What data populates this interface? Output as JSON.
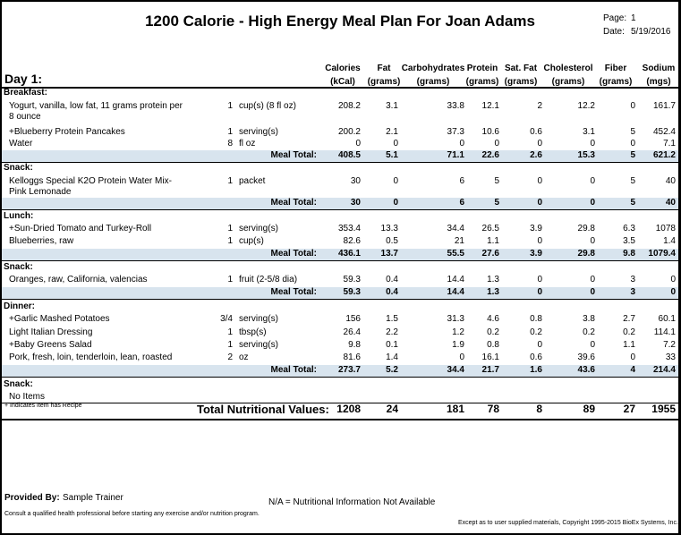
{
  "header": {
    "title": "1200 Calorie - High Energy Meal Plan For Joan Adams",
    "page_label": "Page:",
    "page_number": "1",
    "date_label": "Date:",
    "date": "5/19/2016",
    "day_label": "Day 1:"
  },
  "columns": [
    {
      "line1": "Calories",
      "line2": "(kCal)"
    },
    {
      "line1": "Fat",
      "line2": "(grams)"
    },
    {
      "line1": "Carbohydrates",
      "line2": "(grams)"
    },
    {
      "line1": "Protein",
      "line2": "(grams)"
    },
    {
      "line1": "Sat. Fat",
      "line2": "(grams)"
    },
    {
      "line1": "Cholesterol",
      "line2": "(grams)"
    },
    {
      "line1": "Fiber",
      "line2": "(grams)"
    },
    {
      "line1": "Sodium",
      "line2": "(mgs)"
    }
  ],
  "sections": [
    {
      "label": "Breakfast:",
      "items": [
        {
          "name": "Yogurt, vanilla, low fat, 11 grams protein per 8 ounce",
          "qty": "1",
          "unit": "cup(s) (8 fl oz)",
          "values": [
            "208.2",
            "3.1",
            "33.8",
            "12.1",
            "2",
            "12.2",
            "0",
            "161.7"
          ]
        },
        {
          "name": "+Blueberry Protein Pancakes",
          "qty": "1",
          "unit": "serving(s)",
          "values": [
            "200.2",
            "2.1",
            "37.3",
            "10.6",
            "0.6",
            "3.1",
            "5",
            "452.4"
          ]
        },
        {
          "name": "Water",
          "qty": "8",
          "unit": "fl oz",
          "values": [
            "0",
            "0",
            "0",
            "0",
            "0",
            "0",
            "0",
            "7.1"
          ]
        }
      ],
      "total_label": "Meal Total:",
      "totals": [
        "408.5",
        "5.1",
        "71.1",
        "22.6",
        "2.6",
        "15.3",
        "5",
        "621.2"
      ]
    },
    {
      "label": "Snack:",
      "items": [
        {
          "name": "Kelloggs Special K2O Protein Water Mix-Pink Lemonade",
          "qty": "1",
          "unit": "packet",
          "values": [
            "30",
            "0",
            "6",
            "5",
            "0",
            "0",
            "5",
            "40"
          ]
        }
      ],
      "total_label": "Meal Total:",
      "totals": [
        "30",
        "0",
        "6",
        "5",
        "0",
        "0",
        "5",
        "40"
      ]
    },
    {
      "label": "Lunch:",
      "items": [
        {
          "name": "+Sun-Dried Tomato and Turkey-Roll",
          "qty": "1",
          "unit": "serving(s)",
          "values": [
            "353.4",
            "13.3",
            "34.4",
            "26.5",
            "3.9",
            "29.8",
            "6.3",
            "1078"
          ]
        },
        {
          "name": "Blueberries, raw",
          "qty": "1",
          "unit": "cup(s)",
          "values": [
            "82.6",
            "0.5",
            "21",
            "1.1",
            "0",
            "0",
            "3.5",
            "1.4"
          ]
        }
      ],
      "total_label": "Meal Total:",
      "totals": [
        "436.1",
        "13.7",
        "55.5",
        "27.6",
        "3.9",
        "29.8",
        "9.8",
        "1079.4"
      ]
    },
    {
      "label": "Snack:",
      "items": [
        {
          "name": "Oranges, raw, California, valencias",
          "qty": "1",
          "unit": "fruit (2-5/8 dia)",
          "values": [
            "59.3",
            "0.4",
            "14.4",
            "1.3",
            "0",
            "0",
            "3",
            "0"
          ]
        }
      ],
      "total_label": "Meal Total:",
      "totals": [
        "59.3",
        "0.4",
        "14.4",
        "1.3",
        "0",
        "0",
        "3",
        "0"
      ]
    },
    {
      "label": "Dinner:",
      "items": [
        {
          "name": "+Garlic Mashed Potatoes",
          "qty": "3/4",
          "unit": "serving(s)",
          "values": [
            "156",
            "1.5",
            "31.3",
            "4.6",
            "0.8",
            "3.8",
            "2.7",
            "60.1"
          ]
        },
        {
          "name": "Light Italian Dressing",
          "qty": "1",
          "unit": "tbsp(s)",
          "values": [
            "26.4",
            "2.2",
            "1.2",
            "0.2",
            "0.2",
            "0.2",
            "0.2",
            "114.1"
          ]
        },
        {
          "name": "+Baby Greens Salad",
          "qty": "1",
          "unit": "serving(s)",
          "values": [
            "9.8",
            "0.1",
            "1.9",
            "0.8",
            "0",
            "0",
            "1.1",
            "7.2"
          ]
        },
        {
          "name": "Pork, fresh, loin, tenderloin, lean, roasted",
          "qty": "2",
          "unit": "oz",
          "values": [
            "81.6",
            "1.4",
            "0",
            "16.1",
            "0.6",
            "39.6",
            "0",
            "33"
          ]
        }
      ],
      "total_label": "Meal Total:",
      "totals": [
        "273.7",
        "5.2",
        "34.4",
        "21.7",
        "1.6",
        "43.6",
        "4",
        "214.4"
      ]
    },
    {
      "label": "Snack:",
      "items": [
        {
          "name": "No Items",
          "qty": "",
          "unit": "",
          "values": [
            "",
            "",
            "",
            "",
            "",
            "",
            "",
            ""
          ]
        }
      ],
      "total_label": "",
      "totals": null
    }
  ],
  "summary": {
    "recipe_note": "+ Indicates Item has Recipe",
    "total_label": "Total Nutritional Values:",
    "totals": [
      "1208",
      "24",
      "181",
      "78",
      "8",
      "89",
      "27",
      "1955"
    ]
  },
  "footer": {
    "provided_label": "Provided By:",
    "provided_value": "Sample Trainer",
    "na_note": "N/A = Nutritional Information Not Available",
    "consult": "Consult a qualified health professional before starting any exercise and/or nutrition program.",
    "copyright": "Except as to user supplied materials, Copyright 1995-2015 BioEx Systems, Inc."
  }
}
